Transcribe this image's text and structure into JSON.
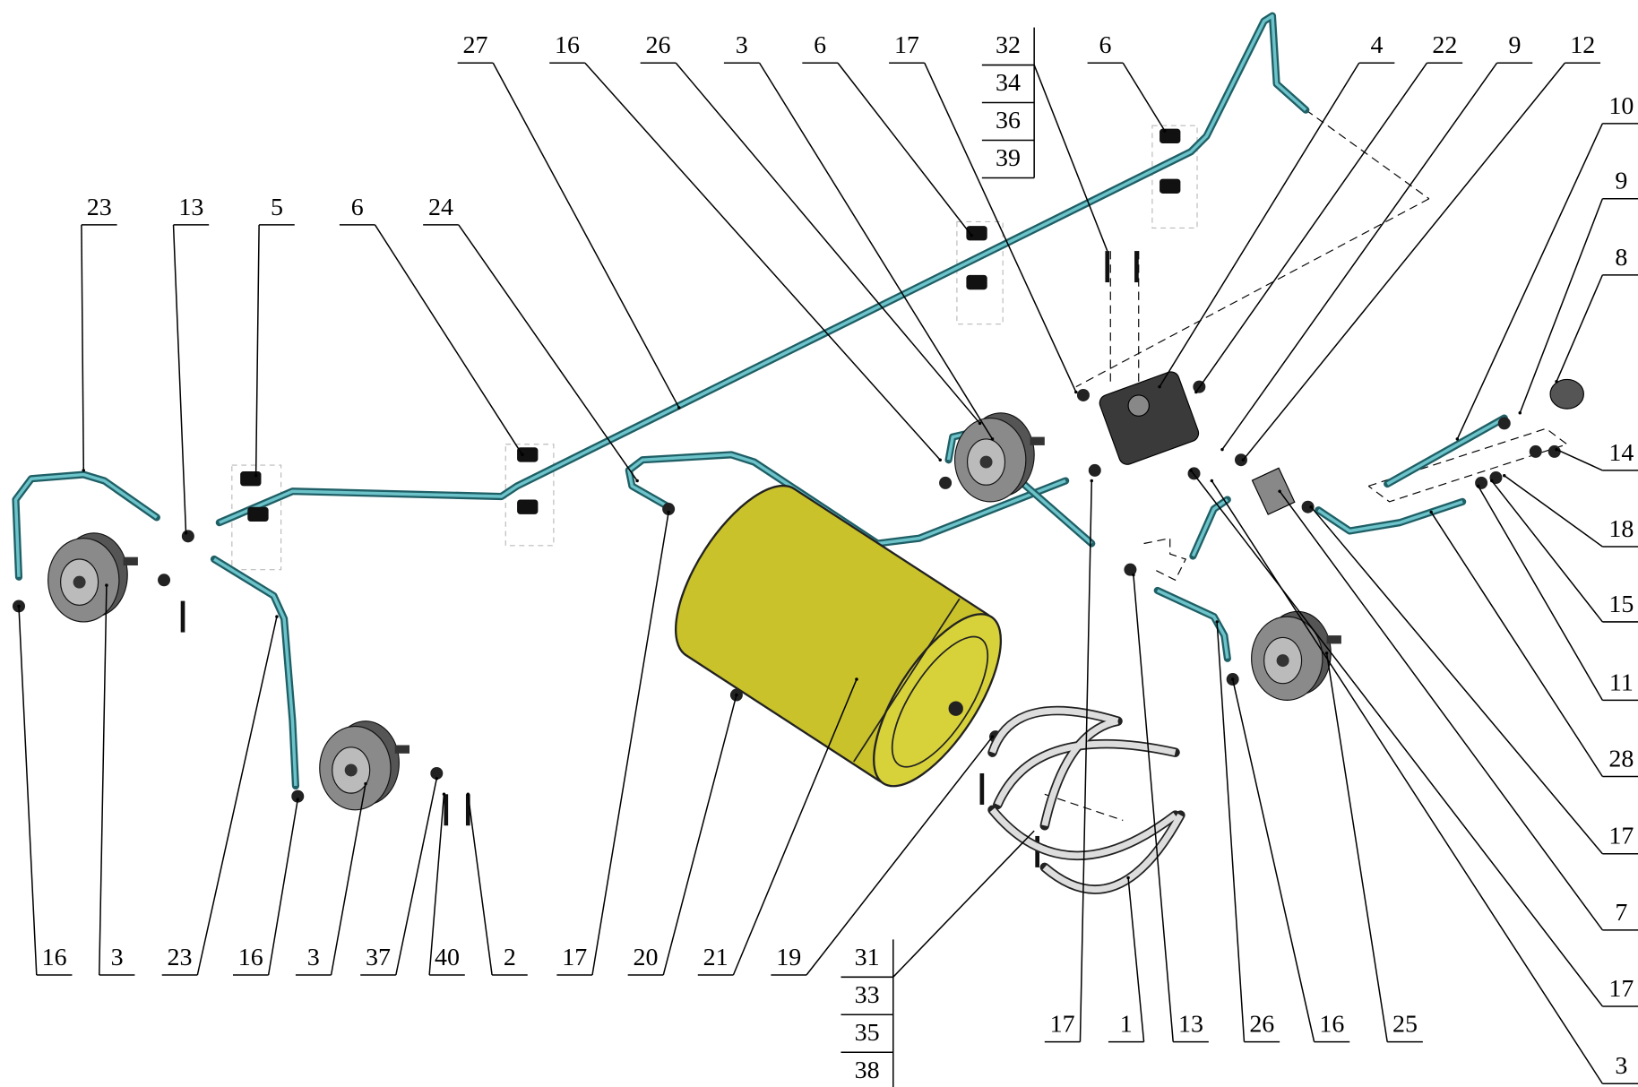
{
  "callouts": [
    {
      "labels": [
        "27"
      ]
    },
    {
      "labels": [
        "16"
      ]
    },
    {
      "labels": [
        "26"
      ]
    },
    {
      "labels": [
        "3"
      ]
    },
    {
      "labels": [
        "6"
      ]
    },
    {
      "labels": [
        "17"
      ]
    },
    {
      "labels": [
        "32",
        "34",
        "36",
        "39"
      ]
    },
    {
      "labels": [
        "6"
      ]
    },
    {
      "labels": [
        "4"
      ]
    },
    {
      "labels": [
        "22"
      ]
    },
    {
      "labels": [
        "9"
      ]
    },
    {
      "labels": [
        "12"
      ]
    },
    {
      "labels": [
        "10"
      ]
    },
    {
      "labels": [
        "9"
      ]
    },
    {
      "labels": [
        "8"
      ]
    },
    {
      "labels": [
        "14"
      ]
    },
    {
      "labels": [
        "18"
      ]
    },
    {
      "labels": [
        "15"
      ]
    },
    {
      "labels": [
        "11"
      ]
    },
    {
      "labels": [
        "28"
      ]
    },
    {
      "labels": [
        "17"
      ]
    },
    {
      "labels": [
        "7"
      ]
    },
    {
      "labels": [
        "17"
      ]
    },
    {
      "labels": [
        "3"
      ]
    },
    {
      "labels": [
        "23"
      ]
    },
    {
      "labels": [
        "13"
      ]
    },
    {
      "labels": [
        "5"
      ]
    },
    {
      "labels": [
        "6"
      ]
    },
    {
      "labels": [
        "24"
      ]
    },
    {
      "labels": [
        "16"
      ]
    },
    {
      "labels": [
        "3"
      ]
    },
    {
      "labels": [
        "23"
      ]
    },
    {
      "labels": [
        "16"
      ]
    },
    {
      "labels": [
        "3"
      ]
    },
    {
      "labels": [
        "37"
      ]
    },
    {
      "labels": [
        "40"
      ]
    },
    {
      "labels": [
        "2"
      ]
    },
    {
      "labels": [
        "17"
      ]
    },
    {
      "labels": [
        "20"
      ]
    },
    {
      "labels": [
        "21"
      ]
    },
    {
      "labels": [
        "19"
      ]
    },
    {
      "labels": [
        "31",
        "33",
        "35",
        "38"
      ]
    },
    {
      "labels": [
        "17"
      ]
    },
    {
      "labels": [
        "1"
      ]
    },
    {
      "labels": [
        "13"
      ]
    },
    {
      "labels": [
        "26"
      ]
    },
    {
      "labels": [
        "16"
      ]
    },
    {
      "labels": [
        "25"
      ]
    }
  ]
}
